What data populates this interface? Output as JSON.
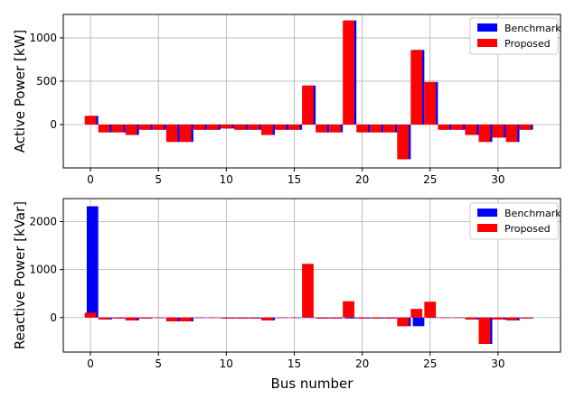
{
  "chart_data": [
    {
      "type": "bar",
      "ylabel": "Active Power [kW]",
      "xlabel": "",
      "xlim": [
        -2,
        34.6
      ],
      "ylim": [
        -500,
        1270
      ],
      "xticks": [
        0,
        5,
        10,
        15,
        20,
        25,
        30
      ],
      "yticks": [
        0,
        500,
        1000
      ],
      "grid": true,
      "legend_position": "top-right",
      "x": [
        0,
        1,
        2,
        3,
        4,
        5,
        6,
        7,
        8,
        9,
        10,
        11,
        12,
        13,
        14,
        15,
        16,
        17,
        18,
        19,
        20,
        21,
        22,
        23,
        24,
        25,
        26,
        27,
        28,
        29,
        30,
        31,
        32
      ],
      "series": [
        {
          "name": "Benchmark",
          "color": "#0000ff",
          "values": [
            100,
            -90,
            -90,
            -120,
            -60,
            -60,
            -200,
            -200,
            -60,
            -60,
            -45,
            -60,
            -60,
            -120,
            -60,
            -60,
            450,
            -90,
            -90,
            1200,
            -90,
            -90,
            -90,
            -400,
            860,
            490,
            -60,
            -60,
            -120,
            -200,
            -150,
            -200,
            -60
          ]
        },
        {
          "name": "Proposed",
          "color": "#ff0000",
          "values": [
            100,
            -90,
            -90,
            -120,
            -60,
            -60,
            -200,
            -200,
            -60,
            -60,
            -45,
            -60,
            -60,
            -120,
            -60,
            -60,
            450,
            -90,
            -90,
            1200,
            -90,
            -90,
            -90,
            -400,
            860,
            490,
            -60,
            -60,
            -120,
            -200,
            -150,
            -200,
            -60
          ]
        }
      ]
    },
    {
      "type": "bar",
      "ylabel": "Reactive Power [kVar]",
      "xlabel": "Bus number",
      "xlim": [
        -2,
        34.6
      ],
      "ylim": [
        -720,
        2480
      ],
      "xticks": [
        0,
        5,
        10,
        15,
        20,
        25,
        30
      ],
      "yticks": [
        0,
        1000,
        2000
      ],
      "grid": true,
      "legend_position": "top-right",
      "x": [
        0,
        1,
        2,
        3,
        4,
        5,
        6,
        7,
        8,
        9,
        10,
        11,
        12,
        13,
        14,
        15,
        16,
        17,
        18,
        19,
        20,
        21,
        22,
        23,
        24,
        25,
        26,
        27,
        28,
        29,
        30,
        31,
        32
      ],
      "series": [
        {
          "name": "Benchmark",
          "color": "#0000ff",
          "values": [
            2320,
            -40,
            -20,
            -60,
            -20,
            0,
            -80,
            -80,
            0,
            0,
            -20,
            -20,
            -20,
            -60,
            0,
            0,
            0,
            -20,
            -20,
            -20,
            -20,
            -20,
            -20,
            -180,
            -180,
            0,
            0,
            0,
            -40,
            -550,
            -40,
            -60,
            -20
          ]
        },
        {
          "name": "Proposed",
          "color": "#ff0000",
          "values": [
            100,
            -40,
            -20,
            -60,
            -20,
            0,
            -80,
            -80,
            0,
            0,
            -20,
            -20,
            -20,
            -60,
            0,
            0,
            1120,
            -20,
            -20,
            340,
            -20,
            -20,
            -20,
            -180,
            180,
            330,
            0,
            0,
            -40,
            -550,
            -40,
            -60,
            -20
          ]
        }
      ]
    }
  ]
}
